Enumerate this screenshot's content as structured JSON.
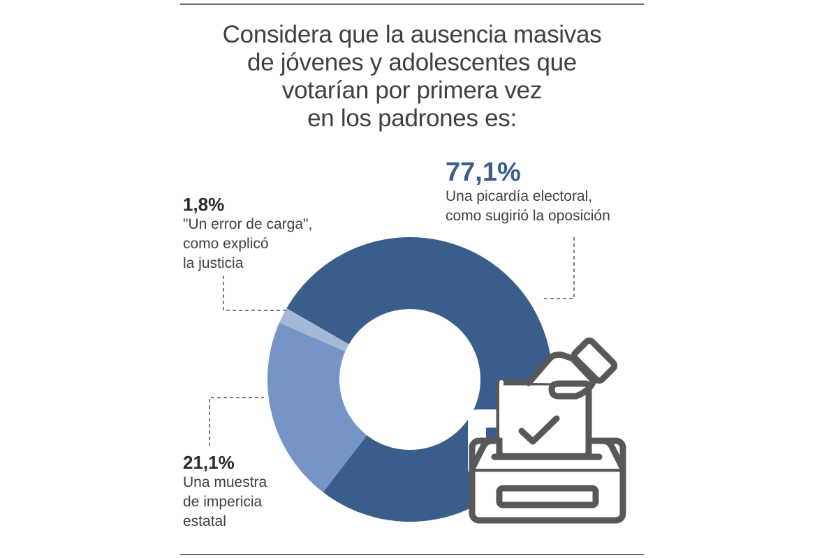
{
  "chart_data": {
    "type": "pie",
    "variant": "donut",
    "title": [
      "Considera que la ausencia masivas",
      "de jóvenes y adolescentes que",
      "votarían por primera vez",
      "en los padrones es:"
    ],
    "slices": [
      {
        "value": 77.1,
        "value_label": "77,1%",
        "label": [
          "Una picardía electoral,",
          "como sugirió la oposición"
        ],
        "color": "#3a5e8c"
      },
      {
        "value": 21.1,
        "value_label": "21,1%",
        "label": [
          "Una muestra",
          "de impericia",
          "estatal"
        ],
        "color": "#7495c5"
      },
      {
        "value": 1.8,
        "value_label": "1,8%",
        "label": [
          "\"Un error de carga\",",
          "como explicó",
          "la justicia"
        ],
        "color": "#a5b8d8"
      }
    ],
    "icon": "ballot-box-icon",
    "icon_color": "#58585a"
  }
}
